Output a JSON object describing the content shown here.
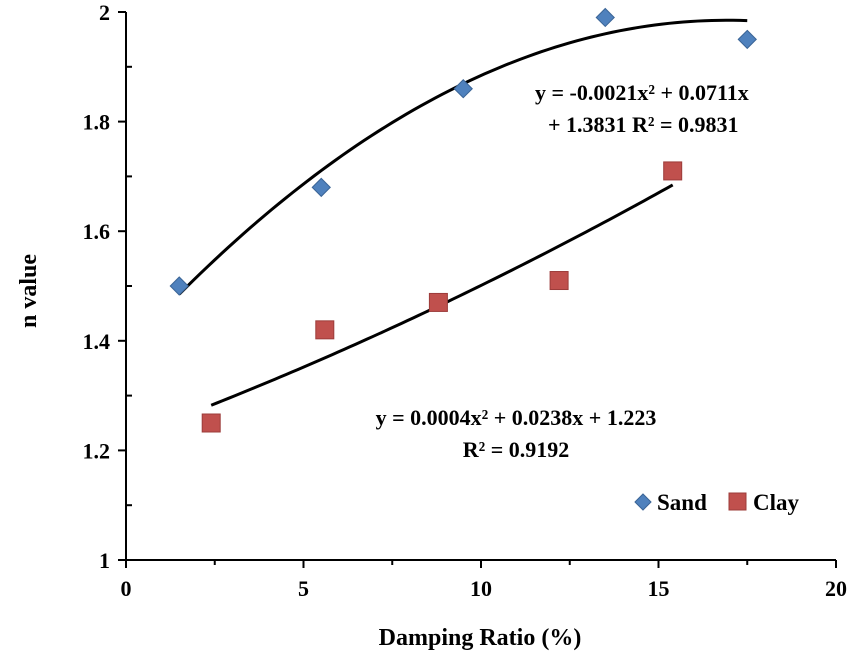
{
  "chart_data": {
    "type": "scatter",
    "title": "",
    "xlabel": "Damping Ratio (%)",
    "ylabel": "n value",
    "xlim": [
      0,
      20
    ],
    "ylim": [
      1,
      2
    ],
    "x_ticks": [
      0,
      5,
      10,
      15,
      20
    ],
    "y_ticks": [
      1,
      1.2,
      1.4,
      1.6,
      1.8,
      2
    ],
    "x_tick_labels": [
      "0",
      "5",
      "10",
      "15",
      "20"
    ],
    "y_tick_labels": [
      "1",
      "1.2",
      "1.4",
      "1.6",
      "1.8",
      "2"
    ],
    "grid": false,
    "legend_position": "bottom-right",
    "series": [
      {
        "name": "Sand",
        "marker": "diamond",
        "color": "#4f81bd",
        "x": [
          1.5,
          5.5,
          9.5,
          13.5,
          17.5
        ],
        "y": [
          1.5,
          1.68,
          1.86,
          1.99,
          1.95
        ],
        "trendline": {
          "type": "polynomial",
          "coefficients": [
            -0.0021,
            0.0711,
            1.3831
          ],
          "x_range": [
            1.5,
            17.5
          ]
        }
      },
      {
        "name": "Clay",
        "marker": "square",
        "color": "#c0504d",
        "x": [
          2.4,
          5.6,
          8.8,
          12.2,
          15.4
        ],
        "y": [
          1.25,
          1.42,
          1.47,
          1.51,
          1.71
        ],
        "trendline": {
          "type": "polynomial",
          "coefficients": [
            0.0004,
            0.0238,
            1.223
          ],
          "x_range": [
            2.4,
            15.4
          ]
        }
      }
    ],
    "annotations": [
      {
        "series": "Sand",
        "lines": [
          "y = -0.0021x² + 0.0711x",
          "+ 1.3831   R² = 0.9831"
        ]
      },
      {
        "series": "Clay",
        "lines": [
          "y = 0.0004x² + 0.0238x + 1.223",
          "R² = 0.9192"
        ]
      }
    ]
  }
}
